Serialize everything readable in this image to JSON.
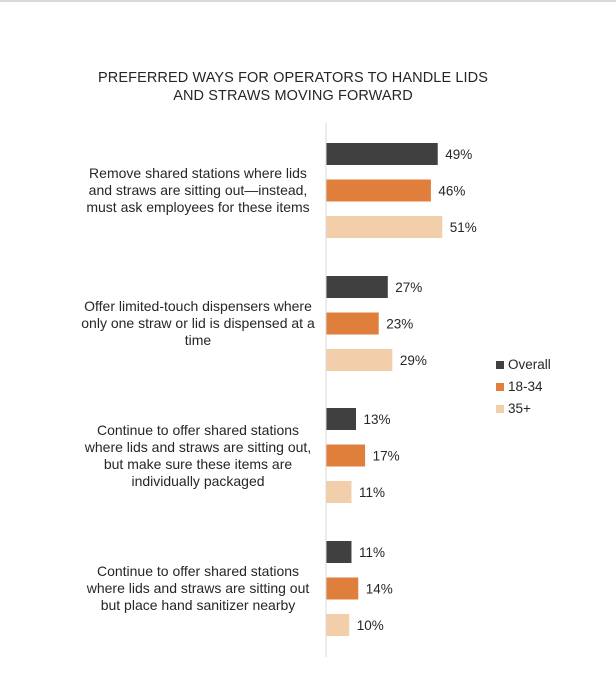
{
  "chart_data": {
    "type": "bar",
    "orientation": "horizontal",
    "title_lines": [
      "PREFERRED WAYS FOR OPERATORS TO HANDLE LIDS",
      "AND STRAWS MOVING FORWARD"
    ],
    "categories": [
      {
        "lines": [
          "Remove shared stations where lids",
          "and straws are sitting out—instead,",
          "must ask employees for these items"
        ]
      },
      {
        "lines": [
          "Offer limited-touch dispensers where",
          "only one straw or lid is dispensed at a",
          "time"
        ]
      },
      {
        "lines": [
          "Continue to offer shared stations",
          "where lids and straws are sitting out,",
          "but make sure these items are",
          "individually packaged"
        ]
      },
      {
        "lines": [
          "Continue to offer shared stations",
          "where lids and straws are sitting out",
          "but place hand sanitizer nearby"
        ]
      }
    ],
    "series": [
      {
        "name": "Overall",
        "color": "#404040",
        "values": [
          49,
          27,
          13,
          11
        ]
      },
      {
        "name": "18-34",
        "color": "#e07f3c",
        "values": [
          46,
          23,
          17,
          14
        ]
      },
      {
        "name": "35+",
        "color": "#f2ceab",
        "values": [
          51,
          29,
          11,
          10
        ]
      }
    ],
    "value_suffix": "%",
    "xlim": [
      0,
      100
    ],
    "grid": false,
    "legend_position": "right"
  }
}
